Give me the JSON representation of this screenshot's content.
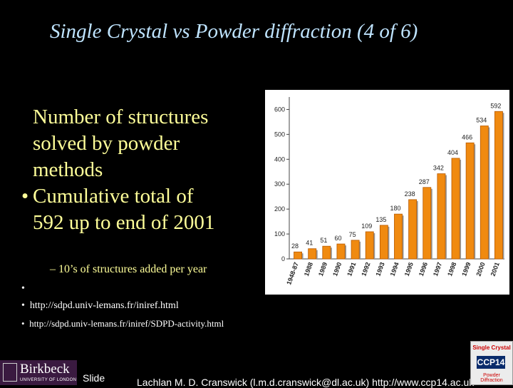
{
  "slide": {
    "title": "Single Crystal vs Powder diffraction (4 of 6)",
    "bullets": [
      {
        "lines": [
          "Number of structures",
          "solved by powder",
          "methods"
        ],
        "dot": ""
      },
      {
        "lines": [
          "Cumulative total of",
          "592 up to end of 2001"
        ],
        "dot": "•"
      }
    ],
    "subbullet": "– 10’s of structures added per year",
    "links": [
      {
        "dot": "•",
        "text": ""
      },
      {
        "dot": "•",
        "text": "http://sdpd.univ-lemans.fr/iniref.html"
      },
      {
        "dot": "•",
        "text": "http://sdpd.univ-lemans.fr/iniref/SDPD-activity.html"
      }
    ],
    "slide_label": "Slide",
    "footer": "Lachlan M. D. Cranswick (l.m.d.cranswick@dl.ac.uk) http://www.ccp14.ac.uk",
    "logo_left": {
      "name": "Birkbeck",
      "sub": "UNIVERSITY OF LONDON"
    },
    "logo_right": {
      "top": "Single Crystal",
      "mid": "CCP14",
      "bottom": "Powder Diffraction"
    }
  },
  "colors": {
    "bar": "#f08a10",
    "bar_dark": "#b85a00",
    "title": "#bfe4ff",
    "text": "#ffff99"
  },
  "chart_data": {
    "type": "bar",
    "categories": [
      "1948-87",
      "1988",
      "1989",
      "1990",
      "1991",
      "1992",
      "1993",
      "1994",
      "1995",
      "1996",
      "1997",
      "1998",
      "1999",
      "2000",
      "2001"
    ],
    "values": [
      28,
      41,
      51,
      60,
      75,
      109,
      135,
      180,
      238,
      287,
      342,
      404,
      466,
      534,
      592
    ],
    "ylim": [
      0,
      650
    ],
    "yticks": [
      0,
      100,
      200,
      300,
      400,
      500,
      600
    ],
    "grid": false,
    "data_labels": true
  }
}
